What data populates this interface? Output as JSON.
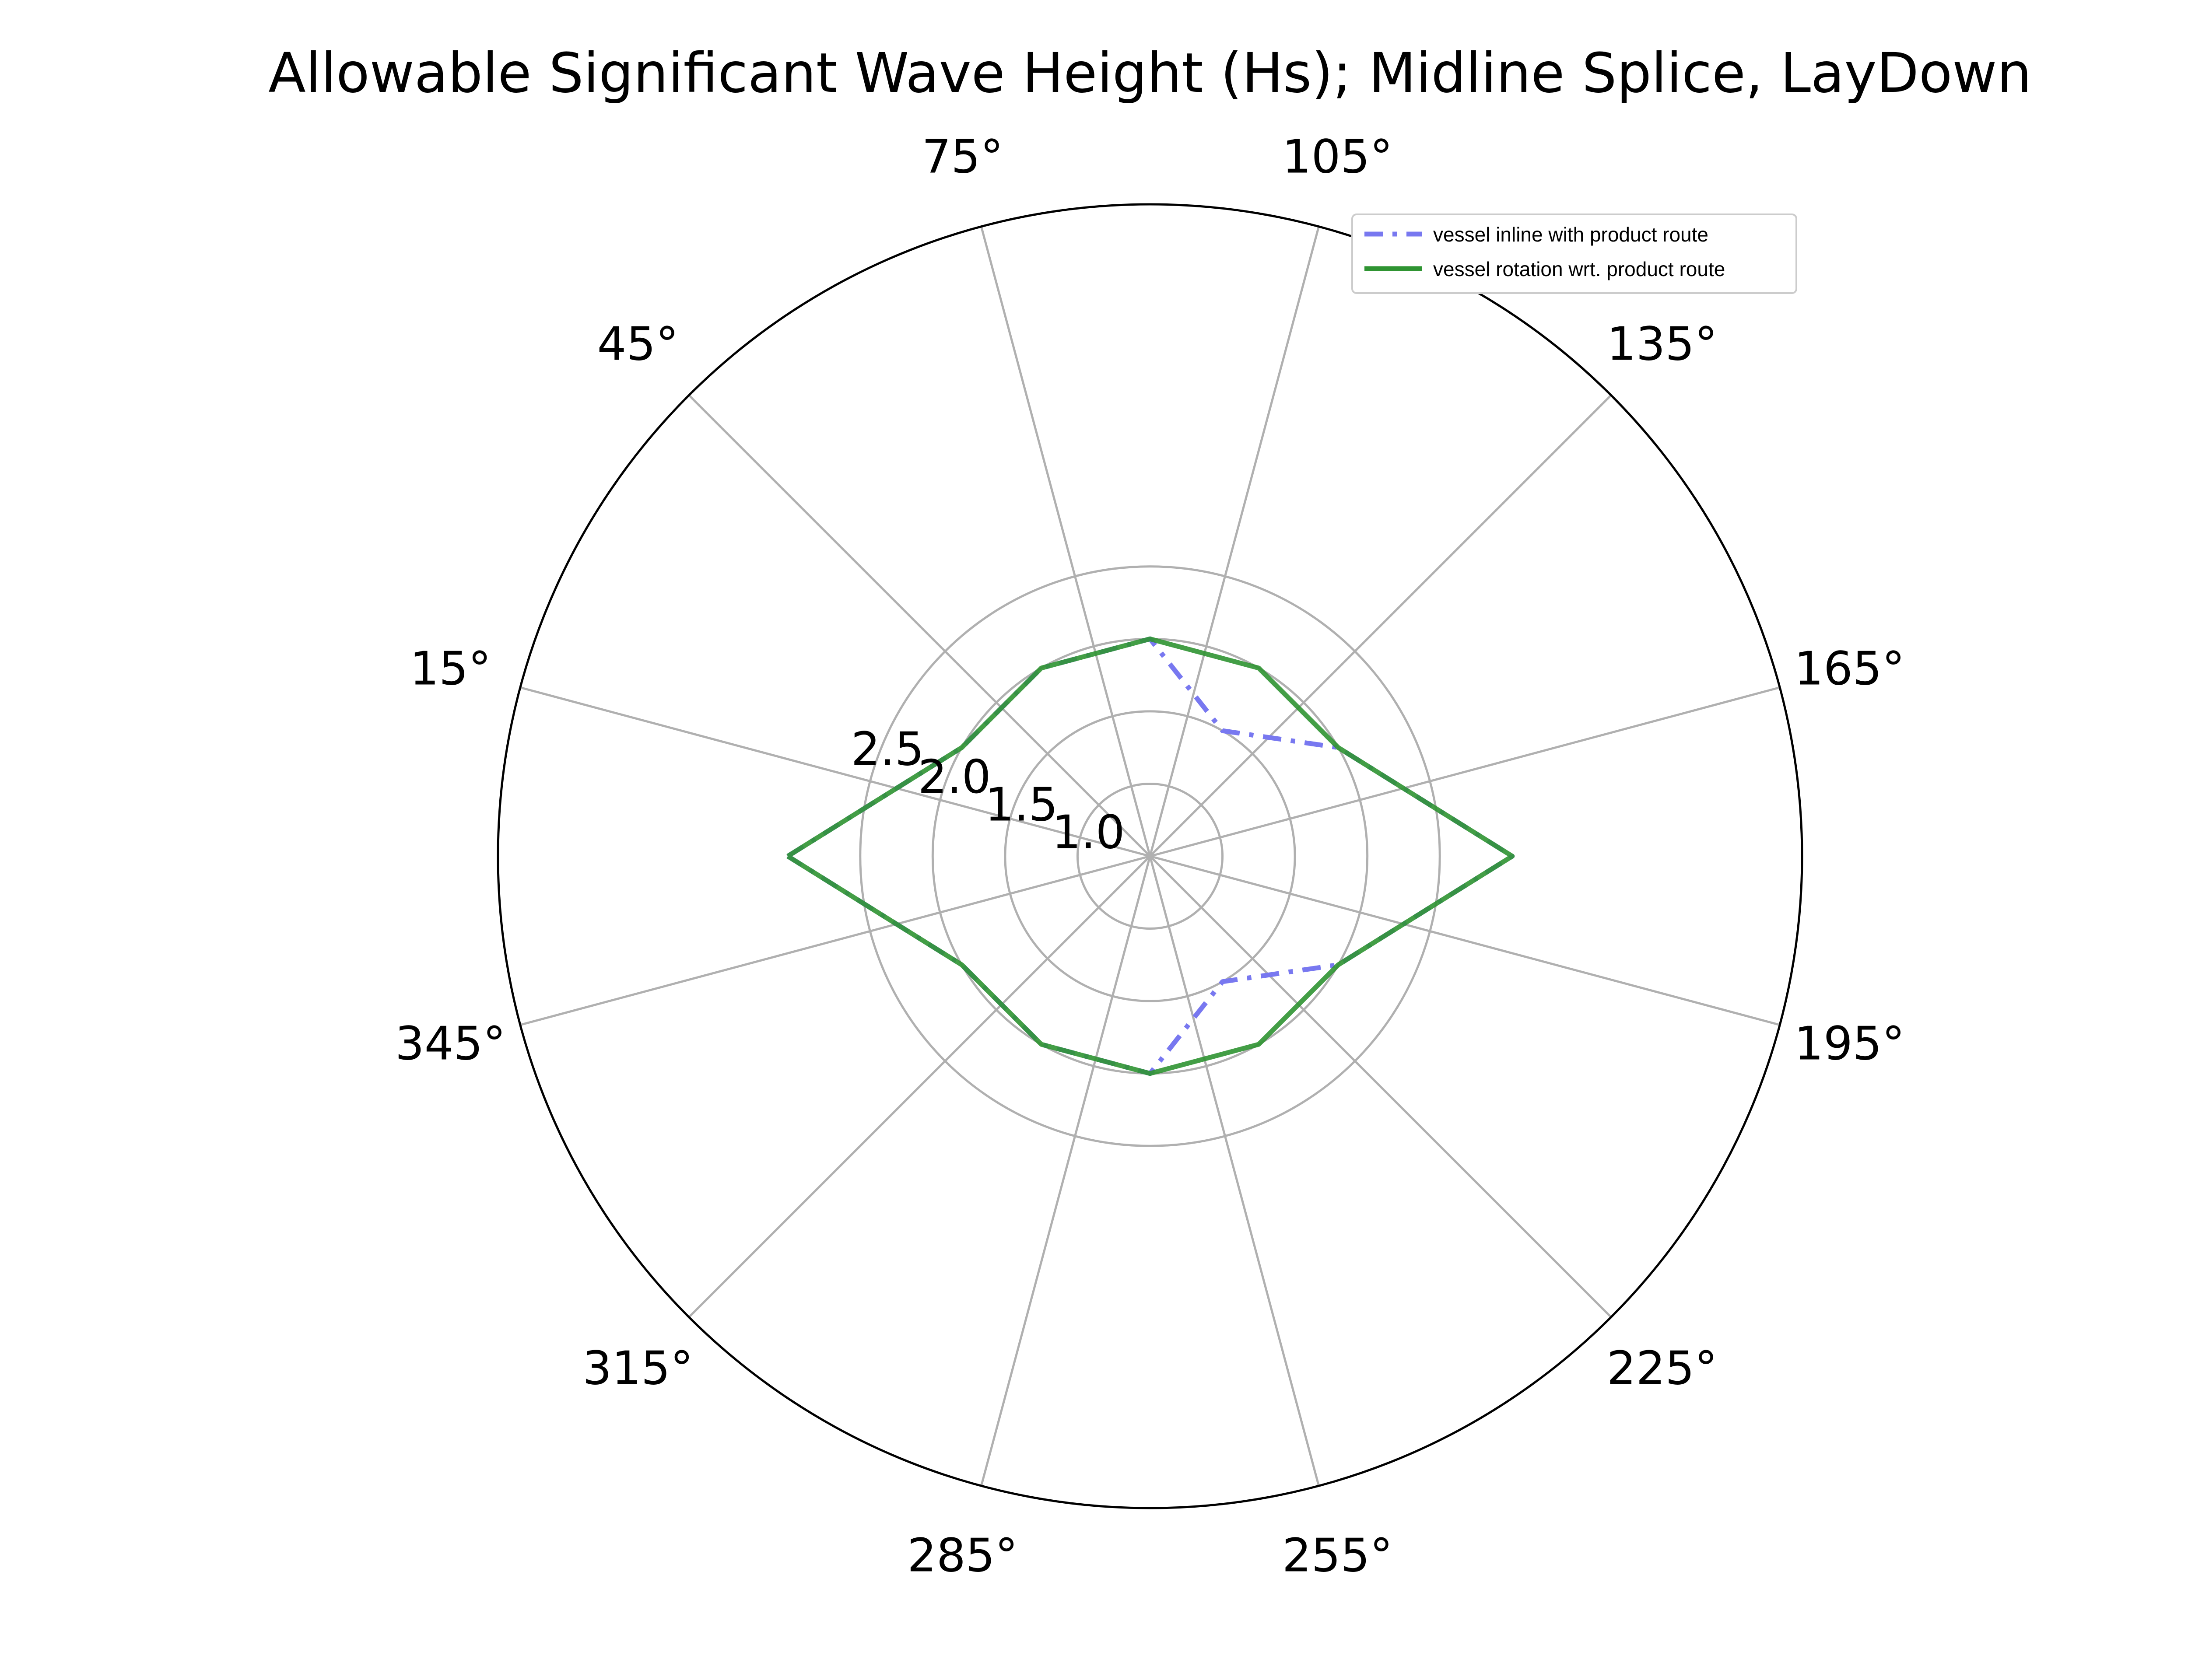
{
  "chart_data": {
    "type": "polar-line",
    "title": "Allowable Significant Wave Height (Hs); Midline Splice, LayDown",
    "theta_unit": "degrees",
    "theta_ticks": [
      "15°",
      "45°",
      "75°",
      "105°",
      "135°",
      "165°",
      "195°",
      "225°",
      "255°",
      "285°",
      "315°",
      "345°"
    ],
    "r_ticks": [
      "1.0",
      "1.5",
      "2.0",
      "2.5"
    ],
    "r_tick_values": [
      1.0,
      1.5,
      2.0,
      2.5
    ],
    "rlim": [
      0.5,
      5.0
    ],
    "theta_points": [
      0,
      30,
      60,
      90,
      120,
      150,
      180,
      210,
      240,
      270,
      300,
      330
    ],
    "series": [
      {
        "name": "vessel inline with product route",
        "color": "#7878f0",
        "style": "dashed",
        "values": [
          3.0,
          2.0,
          2.0,
          2.0,
          1.5,
          2.0,
          3.0,
          2.0,
          1.5,
          2.0,
          2.0,
          2.0
        ]
      },
      {
        "name": "vessel rotation wrt. product route",
        "color": "#2f9432",
        "style": "solid",
        "values": [
          3.0,
          2.0,
          2.0,
          2.0,
          2.0,
          2.0,
          3.0,
          2.0,
          2.0,
          2.0,
          2.0,
          2.0
        ]
      }
    ],
    "legend_position": "top-right",
    "grid": true
  }
}
